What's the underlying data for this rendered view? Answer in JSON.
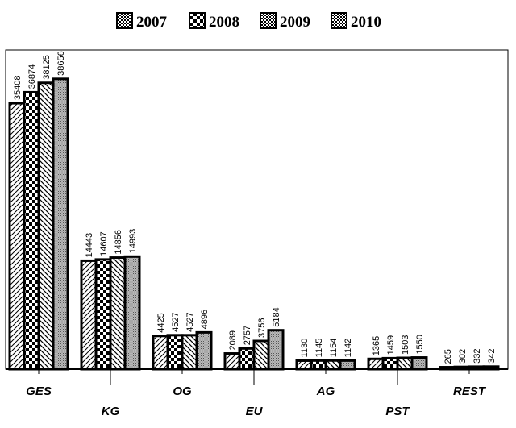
{
  "chart_data": {
    "type": "bar",
    "title": "",
    "xlabel": "",
    "ylabel": "",
    "categories": [
      "GES",
      "KG",
      "OG",
      "EU",
      "AG",
      "PST",
      "REST"
    ],
    "series": [
      {
        "name": "2007",
        "pattern": "diagonal-hatch",
        "values": [
          35408,
          14443,
          4425,
          2089,
          1130,
          1365,
          265
        ]
      },
      {
        "name": "2008",
        "pattern": "checker",
        "values": [
          36874,
          14607,
          4527,
          2757,
          1145,
          1459,
          302
        ]
      },
      {
        "name": "2009",
        "pattern": "back-diagonal-hatch",
        "values": [
          38125,
          14856,
          4527,
          3756,
          1154,
          1503,
          332
        ]
      },
      {
        "name": "2010",
        "pattern": "dots",
        "values": [
          38656,
          14993,
          4896,
          5184,
          1142,
          1550,
          342
        ]
      }
    ],
    "ylim": [
      0,
      42500
    ],
    "grid": false,
    "legend_position": "top",
    "legend_marker_patterns": [
      "dots",
      "checker",
      "dots",
      "dots"
    ],
    "colors": {
      "bar_stroke": "#000000",
      "pattern_ink": "#000000",
      "dots_fill": "#b8b8b8",
      "background": "#ffffff"
    }
  }
}
